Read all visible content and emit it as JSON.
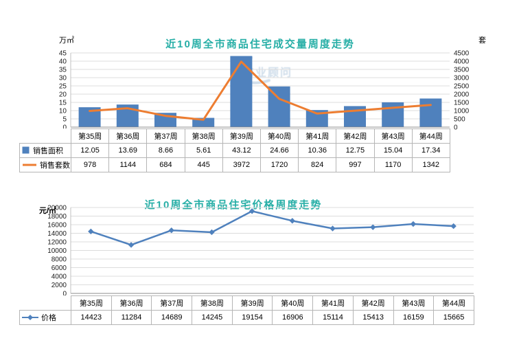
{
  "title_color": "#26AEA6",
  "watermark": {
    "text": "伟业顾问"
  },
  "chart_data": [
    {
      "type": "bar",
      "combo": "bar+line, dual axis",
      "title": "近10周全市商品住宅成交量周度走势",
      "categories": [
        "第35周",
        "第36周",
        "第37周",
        "第38周",
        "第39周",
        "第40周",
        "第41周",
        "第42周",
        "第43周",
        "第44周"
      ],
      "series": [
        {
          "name": "销售面积",
          "type": "bar",
          "swatch": "bar",
          "axis": "left",
          "color": "#4F81BD",
          "values": [
            12.05,
            13.69,
            8.66,
            5.61,
            43.12,
            24.66,
            10.36,
            12.75,
            15.04,
            17.34
          ]
        },
        {
          "name": "销售套数",
          "type": "line",
          "swatch": "line",
          "axis": "right",
          "color": "#ED7D31",
          "values": [
            978,
            1144,
            684,
            445,
            3972,
            1720,
            824,
            997,
            1170,
            1342
          ]
        }
      ],
      "left_axis": {
        "unit": "万㎡",
        "min": 0,
        "max": 45,
        "step": 5
      },
      "right_axis": {
        "unit": "套",
        "min": 0,
        "max": 4500,
        "step": 500
      },
      "grid": true,
      "legend_position": "table-left"
    },
    {
      "type": "line",
      "title": "近10周全市商品住宅价格周度走势",
      "categories": [
        "第35周",
        "第36周",
        "第37周",
        "第38周",
        "第39周",
        "第40周",
        "第41周",
        "第42周",
        "第43周",
        "第44周"
      ],
      "series": [
        {
          "name": "价格",
          "type": "line",
          "swatch": "diamond",
          "marker": "diamond",
          "color": "#4F81BD",
          "values": [
            14423,
            11284,
            14689,
            14245,
            19154,
            16906,
            15114,
            15413,
            16159,
            15665
          ]
        }
      ],
      "left_axis": {
        "unit": "元/㎡",
        "min": 0,
        "max": 20000,
        "step": 2000
      },
      "grid": true,
      "legend_position": "table-left"
    }
  ]
}
